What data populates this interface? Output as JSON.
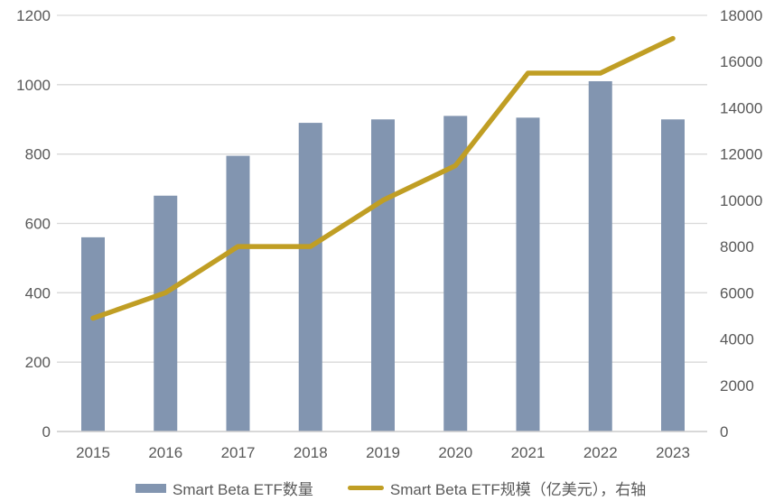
{
  "chart_data": {
    "type": "combo-bar-line",
    "categories": [
      "2015",
      "2016",
      "2017",
      "2018",
      "2019",
      "2020",
      "2021",
      "2022",
      "2023"
    ],
    "series": [
      {
        "name": "Smart Beta ETF数量",
        "type": "bar",
        "axis": "left",
        "color": "#8295b0",
        "values": [
          560,
          680,
          795,
          890,
          900,
          910,
          905,
          1010,
          900
        ]
      },
      {
        "name": "Smart Beta ETF规模（亿美元），右轴",
        "type": "line",
        "axis": "right",
        "color": "#c09e24",
        "values": [
          4900,
          6000,
          8000,
          8000,
          10000,
          11500,
          15500,
          15500,
          17000
        ]
      }
    ],
    "left_axis": {
      "min": 0,
      "max": 1200,
      "step": 200,
      "ticks": [
        0,
        200,
        400,
        600,
        800,
        1000,
        1200
      ]
    },
    "right_axis": {
      "min": 0,
      "max": 18000,
      "step": 2000,
      "ticks": [
        0,
        2000,
        4000,
        6000,
        8000,
        10000,
        12000,
        14000,
        16000,
        18000
      ]
    },
    "grid": true,
    "legend_position": "bottom",
    "title": ""
  },
  "legend": {
    "items": [
      {
        "label": "Smart Beta ETF数量"
      },
      {
        "label": "Smart Beta ETF规模（亿美元），右轴"
      }
    ]
  },
  "style": {
    "background": "#ffffff",
    "grid_color": "#d9d9d9",
    "axis_line_color": "#cccccc",
    "tick_label_color": "#595959"
  }
}
